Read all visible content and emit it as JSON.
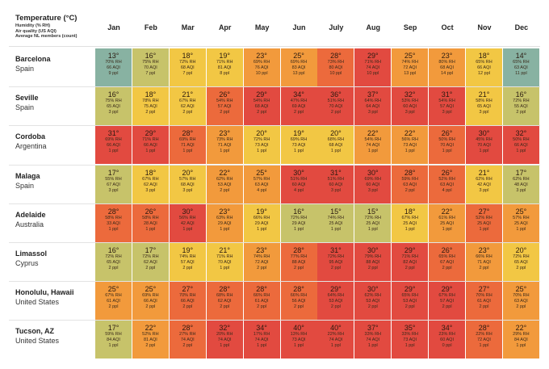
{
  "legend": {
    "line1": "Temperature (°C)",
    "line2": "Humidity (% RH)",
    "line3": "Air quality (US AQI)",
    "line4": "Average NL members (count)"
  },
  "months": [
    "Jan",
    "Feb",
    "Mar",
    "Apr",
    "May",
    "Jun",
    "July",
    "Aug",
    "Sep",
    "Oct",
    "Nov",
    "Dec"
  ],
  "scale_colors": {
    "cool": "#88b2a2",
    "mild": "#c7c36a",
    "warm": "#f2c744",
    "hot": "#f29a3c",
    "very_hot": "#ec6a3c",
    "extreme": "#e24a40"
  },
  "rows": [
    {
      "city": "Barcelona",
      "country": "Spain",
      "cells": [
        {
          "temp": "13°",
          "rh": "70% RH",
          "aqi": "66 AQI",
          "ppl": "9 ppl"
        },
        {
          "temp": "16°",
          "rh": "75% RH",
          "aqi": "70 AQI",
          "ppl": "7 ppl"
        },
        {
          "temp": "18°",
          "rh": "72% RH",
          "aqi": "68 AQI",
          "ppl": "7 ppl"
        },
        {
          "temp": "19°",
          "rh": "71% RH",
          "aqi": "81 AQI",
          "ppl": "8 ppl"
        },
        {
          "temp": "23°",
          "rh": "69% RH",
          "aqi": "76 AQI",
          "ppl": "10 ppl"
        },
        {
          "temp": "25°",
          "rh": "69% RH",
          "aqi": "83 AQI",
          "ppl": "13 ppl"
        },
        {
          "temp": "28°",
          "rh": "73% RH",
          "aqi": "80 AQI",
          "ppl": "10 ppl"
        },
        {
          "temp": "29°",
          "rh": "71% RH",
          "aqi": "74 AQI",
          "ppl": "10 ppl"
        },
        {
          "temp": "25°",
          "rh": "74% RH",
          "aqi": "72 AQI",
          "ppl": "13 ppl"
        },
        {
          "temp": "23°",
          "rh": "80% RH",
          "aqi": "68 AQI",
          "ppl": "14 ppl"
        },
        {
          "temp": "18°",
          "rh": "65% RH",
          "aqi": "66 AQI",
          "ppl": "12 ppl"
        },
        {
          "temp": "14°",
          "rh": "65% RH",
          "aqi": "63 AQI",
          "ppl": "11 ppl"
        }
      ]
    },
    {
      "city": "Seville",
      "country": "Spain",
      "cells": [
        {
          "temp": "16°",
          "rh": "75% RH",
          "aqi": "65 AQI",
          "ppl": "3 ppl"
        },
        {
          "temp": "18°",
          "rh": "78% RH",
          "aqi": "75 AQI",
          "ppl": "2 ppl"
        },
        {
          "temp": "21°",
          "rh": "67% RH",
          "aqi": "62 AQI",
          "ppl": "2 ppl"
        },
        {
          "temp": "26°",
          "rh": "54% RH",
          "aqi": "57 AQI",
          "ppl": "2 ppl"
        },
        {
          "temp": "29°",
          "rh": "54% RH",
          "aqi": "68 AQI",
          "ppl": "2 ppl"
        },
        {
          "temp": "34°",
          "rh": "47% RH",
          "aqi": "69 AQI",
          "ppl": "2 ppl"
        },
        {
          "temp": "36°",
          "rh": "51% RH",
          "aqi": "70 AQI",
          "ppl": "2 ppl"
        },
        {
          "temp": "37°",
          "rh": "64% RH",
          "aqi": "64 AQI",
          "ppl": "3 ppl"
        },
        {
          "temp": "32°",
          "rh": "53% RH",
          "aqi": "60 AQI",
          "ppl": "3 ppl"
        },
        {
          "temp": "31°",
          "rh": "54% RH",
          "aqi": "57 AQI",
          "ppl": "3 ppl"
        },
        {
          "temp": "21°",
          "rh": "58% RH",
          "aqi": "65 AQI",
          "ppl": "3 ppl"
        },
        {
          "temp": "16°",
          "rh": "72% RH",
          "aqi": "55 AQI",
          "ppl": "2 ppl"
        }
      ]
    },
    {
      "city": "Cordoba",
      "country": "Argentina",
      "cells": [
        {
          "temp": "31°",
          "rh": "69% RH",
          "aqi": "66 AQI",
          "ppl": "1 ppl"
        },
        {
          "temp": "29°",
          "rh": "71% RH",
          "aqi": "66 AQI",
          "ppl": "1 ppl"
        },
        {
          "temp": "28°",
          "rh": "69% RH",
          "aqi": "71 AQI",
          "ppl": "1 ppl"
        },
        {
          "temp": "23°",
          "rh": "73% RH",
          "aqi": "71 AQI",
          "ppl": "1 ppl"
        },
        {
          "temp": "20°",
          "rh": "72% RH",
          "aqi": "73 AQI",
          "ppl": "1 ppl"
        },
        {
          "temp": "19°",
          "rh": "69% RH",
          "aqi": "73 AQI",
          "ppl": "1 ppl"
        },
        {
          "temp": "20°",
          "rh": "68% RH",
          "aqi": "68 AQI",
          "ppl": "1 ppl"
        },
        {
          "temp": "22°",
          "rh": "54% RH",
          "aqi": "74 AQI",
          "ppl": "1 ppl"
        },
        {
          "temp": "22°",
          "rh": "56% RH",
          "aqi": "73 AQI",
          "ppl": "1 ppl"
        },
        {
          "temp": "26°",
          "rh": "50% RH",
          "aqi": "70 AQI",
          "ppl": "1 ppl"
        },
        {
          "temp": "30°",
          "rh": "45% RH",
          "aqi": "70 AQI",
          "ppl": "1 ppl"
        },
        {
          "temp": "32°",
          "rh": "50% RH",
          "aqi": "66 AQI",
          "ppl": "1 ppl"
        }
      ]
    },
    {
      "city": "Malaga",
      "country": "Spain",
      "cells": [
        {
          "temp": "17°",
          "rh": "55% RH",
          "aqi": "67 AQI",
          "ppl": "3 ppl"
        },
        {
          "temp": "18°",
          "rh": "67% RH",
          "aqi": "62 AQI",
          "ppl": "3 ppl"
        },
        {
          "temp": "20°",
          "rh": "57% RH",
          "aqi": "68 AQI",
          "ppl": "3 ppl"
        },
        {
          "temp": "22°",
          "rh": "62% RH",
          "aqi": "53 AQI",
          "ppl": "2 ppl"
        },
        {
          "temp": "25°",
          "rh": "57% RH",
          "aqi": "63 AQI",
          "ppl": "4 ppl"
        },
        {
          "temp": "30°",
          "rh": "51% RH",
          "aqi": "60 AQI",
          "ppl": "4 ppl"
        },
        {
          "temp": "31°",
          "rh": "51% RH",
          "aqi": "60 AQI",
          "ppl": "3 ppl"
        },
        {
          "temp": "30°",
          "rh": "69% RH",
          "aqi": "60 AQI",
          "ppl": "3 ppl"
        },
        {
          "temp": "28°",
          "rh": "59% RH",
          "aqi": "63 AQI",
          "ppl": "2 ppl"
        },
        {
          "temp": "26°",
          "rh": "52% RH",
          "aqi": "63 AQI",
          "ppl": "4 ppl"
        },
        {
          "temp": "21°",
          "rh": "62% RH",
          "aqi": "42 AQI",
          "ppl": "3 ppl"
        },
        {
          "temp": "17°",
          "rh": "62% RH",
          "aqi": "48 AQI",
          "ppl": "3 ppl"
        }
      ]
    },
    {
      "city": "Adelaide",
      "country": "Australia",
      "cells": [
        {
          "temp": "28°",
          "rh": "58% RH",
          "aqi": "33 AQI",
          "ppl": "1 ppl"
        },
        {
          "temp": "26°",
          "rh": "58% RH",
          "aqi": "28 AQI",
          "ppl": "1 ppl"
        },
        {
          "temp": "30°",
          "rh": "56% RH",
          "aqi": "42 AQI",
          "ppl": "1 ppl"
        },
        {
          "temp": "23°",
          "rh": "63% RH",
          "aqi": "29 AQI",
          "ppl": "1 ppl"
        },
        {
          "temp": "19°",
          "rh": "66% RH",
          "aqi": "29 AQI",
          "ppl": "1 ppl"
        },
        {
          "temp": "16°",
          "rh": "72% RH",
          "aqi": "29 AQI",
          "ppl": "1 ppl"
        },
        {
          "temp": "15°",
          "rh": "74% RH",
          "aqi": "25 AQI",
          "ppl": "1 ppl"
        },
        {
          "temp": "15°",
          "rh": "72% RH",
          "aqi": "25 AQI",
          "ppl": "1 ppl"
        },
        {
          "temp": "18°",
          "rh": "67% RH",
          "aqi": "25 AQI",
          "ppl": "1 ppl"
        },
        {
          "temp": "22°",
          "rh": "61% RH",
          "aqi": "25 AQI",
          "ppl": "1 ppl"
        },
        {
          "temp": "27°",
          "rh": "52% RH",
          "aqi": "25 AQI",
          "ppl": "1 ppl"
        },
        {
          "temp": "25°",
          "rh": "57% RH",
          "aqi": "25 AQI",
          "ppl": "1 ppl"
        }
      ]
    },
    {
      "city": "Limassol",
      "country": "Cyprus",
      "cells": [
        {
          "temp": "16°",
          "rh": "72% RH",
          "aqi": "65 AQI",
          "ppl": "2 ppl"
        },
        {
          "temp": "17°",
          "rh": "72% RH",
          "aqi": "62 AQI",
          "ppl": "2 ppl"
        },
        {
          "temp": "19°",
          "rh": "74% RH",
          "aqi": "57 AQI",
          "ppl": "2 ppl"
        },
        {
          "temp": "21°",
          "rh": "71% RH",
          "aqi": "70 AQI",
          "ppl": "1 ppl"
        },
        {
          "temp": "23°",
          "rh": "74% RH",
          "aqi": "72 AQI",
          "ppl": "2 ppl"
        },
        {
          "temp": "28°",
          "rh": "77% RH",
          "aqi": "88 AQI",
          "ppl": "2 ppl"
        },
        {
          "temp": "31°",
          "rh": "72% RH",
          "aqi": "95 AQI",
          "ppl": "2 ppl"
        },
        {
          "temp": "30°",
          "rh": "79% RH",
          "aqi": "88 AQI",
          "ppl": "2 ppl"
        },
        {
          "temp": "29°",
          "rh": "71% RH",
          "aqi": "82 AQI",
          "ppl": "2 ppl"
        },
        {
          "temp": "26°",
          "rh": "65% RH",
          "aqi": "67 AQI",
          "ppl": "2 ppl"
        },
        {
          "temp": "23°",
          "rh": "66% RH",
          "aqi": "71 AQI",
          "ppl": "2 ppl"
        },
        {
          "temp": "20°",
          "rh": "72% RH",
          "aqi": "65 AQI",
          "ppl": "2 ppl"
        }
      ]
    },
    {
      "city": "Honolulu, Hawaii",
      "country": "United States",
      "cells": [
        {
          "temp": "25°",
          "rh": "67% RH",
          "aqi": "61 AQI",
          "ppl": "2 ppl"
        },
        {
          "temp": "25°",
          "rh": "69% RH",
          "aqi": "66 AQI",
          "ppl": "2 ppl"
        },
        {
          "temp": "27°",
          "rh": "70% RH",
          "aqi": "66 AQI",
          "ppl": "2 ppl"
        },
        {
          "temp": "28°",
          "rh": "68% RH",
          "aqi": "62 AQI",
          "ppl": "2 ppl"
        },
        {
          "temp": "28°",
          "rh": "66% RH",
          "aqi": "61 AQI",
          "ppl": "2 ppl"
        },
        {
          "temp": "28°",
          "rh": "66% RH",
          "aqi": "56 AQI",
          "ppl": "2 ppl"
        },
        {
          "temp": "29°",
          "rh": "64% RH",
          "aqi": "53 AQI",
          "ppl": "2 ppl"
        },
        {
          "temp": "30°",
          "rh": "62% RH",
          "aqi": "53 AQI",
          "ppl": "2 ppl"
        },
        {
          "temp": "29°",
          "rh": "65% RH",
          "aqi": "53 AQI",
          "ppl": "2 ppl"
        },
        {
          "temp": "29°",
          "rh": "67% RH",
          "aqi": "57 AQI",
          "ppl": "2 ppl"
        },
        {
          "temp": "27°",
          "rh": "70% RH",
          "aqi": "61 AQI",
          "ppl": "2 ppl"
        },
        {
          "temp": "25°",
          "rh": "70% RH",
          "aqi": "63 AQI",
          "ppl": "2 ppl"
        }
      ]
    },
    {
      "city": "Tucson, AZ",
      "country": "United States",
      "cells": [
        {
          "temp": "17°",
          "rh": "59% RH",
          "aqi": "84 AQI",
          "ppl": "1 ppl"
        },
        {
          "temp": "22°",
          "rh": "52% RH",
          "aqi": "81 AQI",
          "ppl": "2 ppl"
        },
        {
          "temp": "28°",
          "rh": "27% RH",
          "aqi": "74 AQI",
          "ppl": "2 ppl"
        },
        {
          "temp": "32°",
          "rh": "20% RH",
          "aqi": "74 AQI",
          "ppl": "1 ppl"
        },
        {
          "temp": "34°",
          "rh": "17% RH",
          "aqi": "74 AQI",
          "ppl": "1 ppl"
        },
        {
          "temp": "40°",
          "rh": "13% RH",
          "aqi": "73 AQI",
          "ppl": "1 ppl"
        },
        {
          "temp": "40°",
          "rh": "22% RH",
          "aqi": "74 AQI",
          "ppl": "1 ppl"
        },
        {
          "temp": "37°",
          "rh": "33% RH",
          "aqi": "74 AQI",
          "ppl": "1 ppl"
        },
        {
          "temp": "35°",
          "rh": "33% RH",
          "aqi": "73 AQI",
          "ppl": "1 ppl"
        },
        {
          "temp": "34°",
          "rh": "23% RH",
          "aqi": "60 AQI",
          "ppl": "0 ppl"
        },
        {
          "temp": "28°",
          "rh": "22% RH",
          "aqi": "72 AQI",
          "ppl": "1 ppl"
        },
        {
          "temp": "22°",
          "rh": "29% RH",
          "aqi": "84 AQI",
          "ppl": "1 ppl"
        }
      ]
    }
  ]
}
